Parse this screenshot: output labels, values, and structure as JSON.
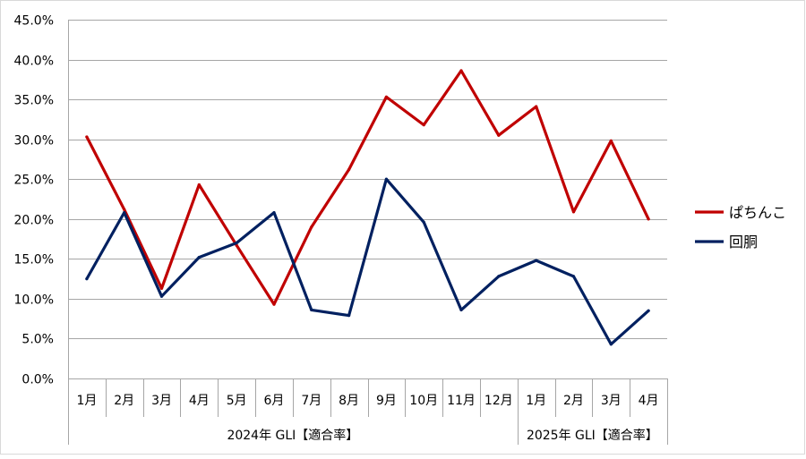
{
  "chart_data": {
    "type": "line",
    "title": "",
    "xlabel": "",
    "ylabel": "",
    "categories": [
      "1月",
      "2月",
      "3月",
      "4月",
      "5月",
      "6月",
      "7月",
      "8月",
      "9月",
      "10月",
      "11月",
      "12月",
      "1月",
      "2月",
      "3月",
      "4月"
    ],
    "category_groups": [
      {
        "label": "2024年 GLI【適合率】",
        "months": 12
      },
      {
        "label": "2025年 GLI【適合率】",
        "months": 4
      }
    ],
    "ylim": [
      0,
      45
    ],
    "y_ticks": [
      "0.0%",
      "5.0%",
      "10.0%",
      "15.0%",
      "20.0%",
      "25.0%",
      "30.0%",
      "35.0%",
      "40.0%",
      "45.0%"
    ],
    "grid": true,
    "legend_position": "right",
    "series": [
      {
        "name": "ぱちんこ",
        "color": "#C00000",
        "values": [
          30.3,
          21.2,
          11.3,
          24.3,
          16.7,
          9.3,
          19.0,
          26.2,
          35.3,
          31.8,
          38.6,
          30.5,
          34.1,
          20.9,
          29.8,
          20.0
        ]
      },
      {
        "name": "回胴",
        "color": "#002060",
        "values": [
          12.5,
          20.8,
          10.3,
          15.2,
          17.0,
          20.8,
          8.6,
          7.9,
          25.0,
          19.6,
          8.6,
          12.8,
          14.8,
          12.8,
          4.3,
          8.5
        ]
      }
    ]
  }
}
